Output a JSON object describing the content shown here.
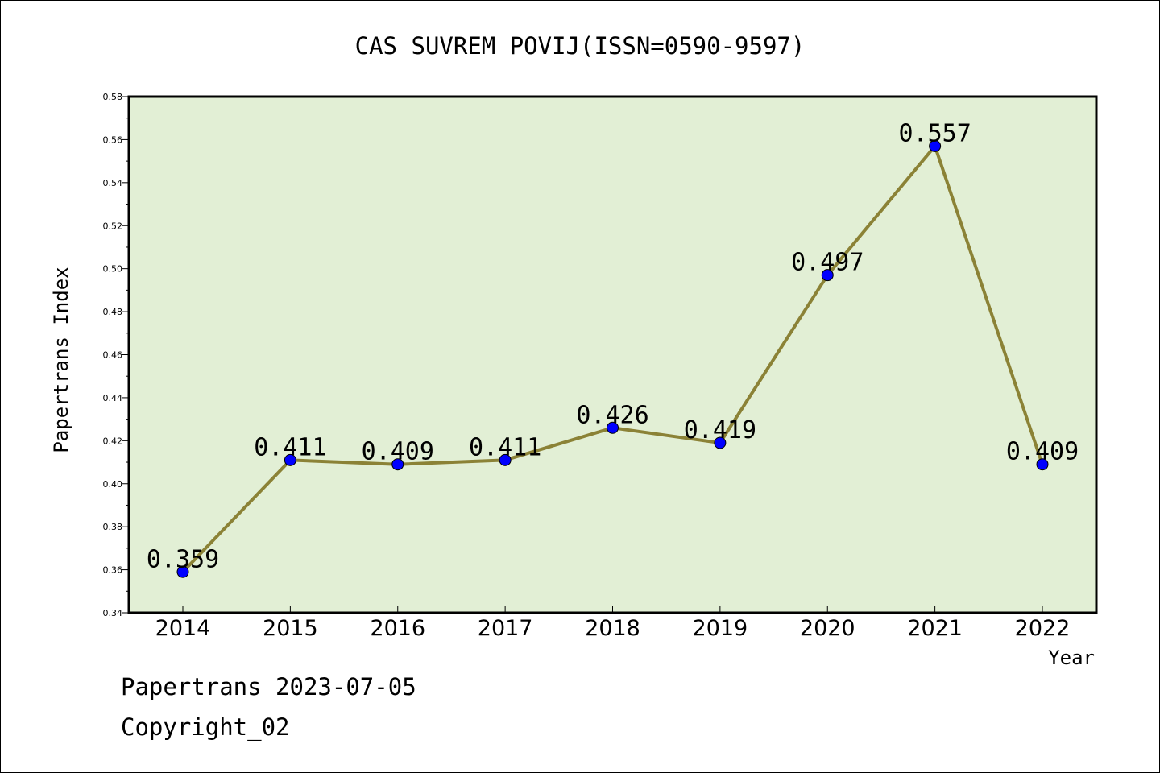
{
  "chart_data": {
    "type": "line",
    "title": "CAS SUVREM POVIJ(ISSN=0590-9597)",
    "xlabel": "Year",
    "ylabel": "Papertrans Index",
    "categories": [
      "2014",
      "2015",
      "2016",
      "2017",
      "2018",
      "2019",
      "2020",
      "2021",
      "2022"
    ],
    "values": [
      0.359,
      0.411,
      0.409,
      0.411,
      0.426,
      0.419,
      0.497,
      0.557,
      0.409
    ],
    "data_labels": [
      "0.359",
      "0.411",
      "0.409",
      "0.411",
      "0.426",
      "0.419",
      "0.497",
      "0.557",
      "0.409"
    ],
    "ylim": [
      0.34,
      0.58
    ],
    "yticks": [
      "0.34",
      "0.36",
      "0.38",
      "0.40",
      "0.42",
      "0.44",
      "0.46",
      "0.48",
      "0.50",
      "0.52",
      "0.54",
      "0.56",
      "0.58"
    ],
    "grid": false,
    "colors": {
      "plot_background": "#e2efd5",
      "line": "#8b8236",
      "marker": "#0000ff"
    }
  },
  "footer": {
    "date_text": "Papertrans 2023-07-05",
    "copyright_text": "Copyright_02"
  }
}
